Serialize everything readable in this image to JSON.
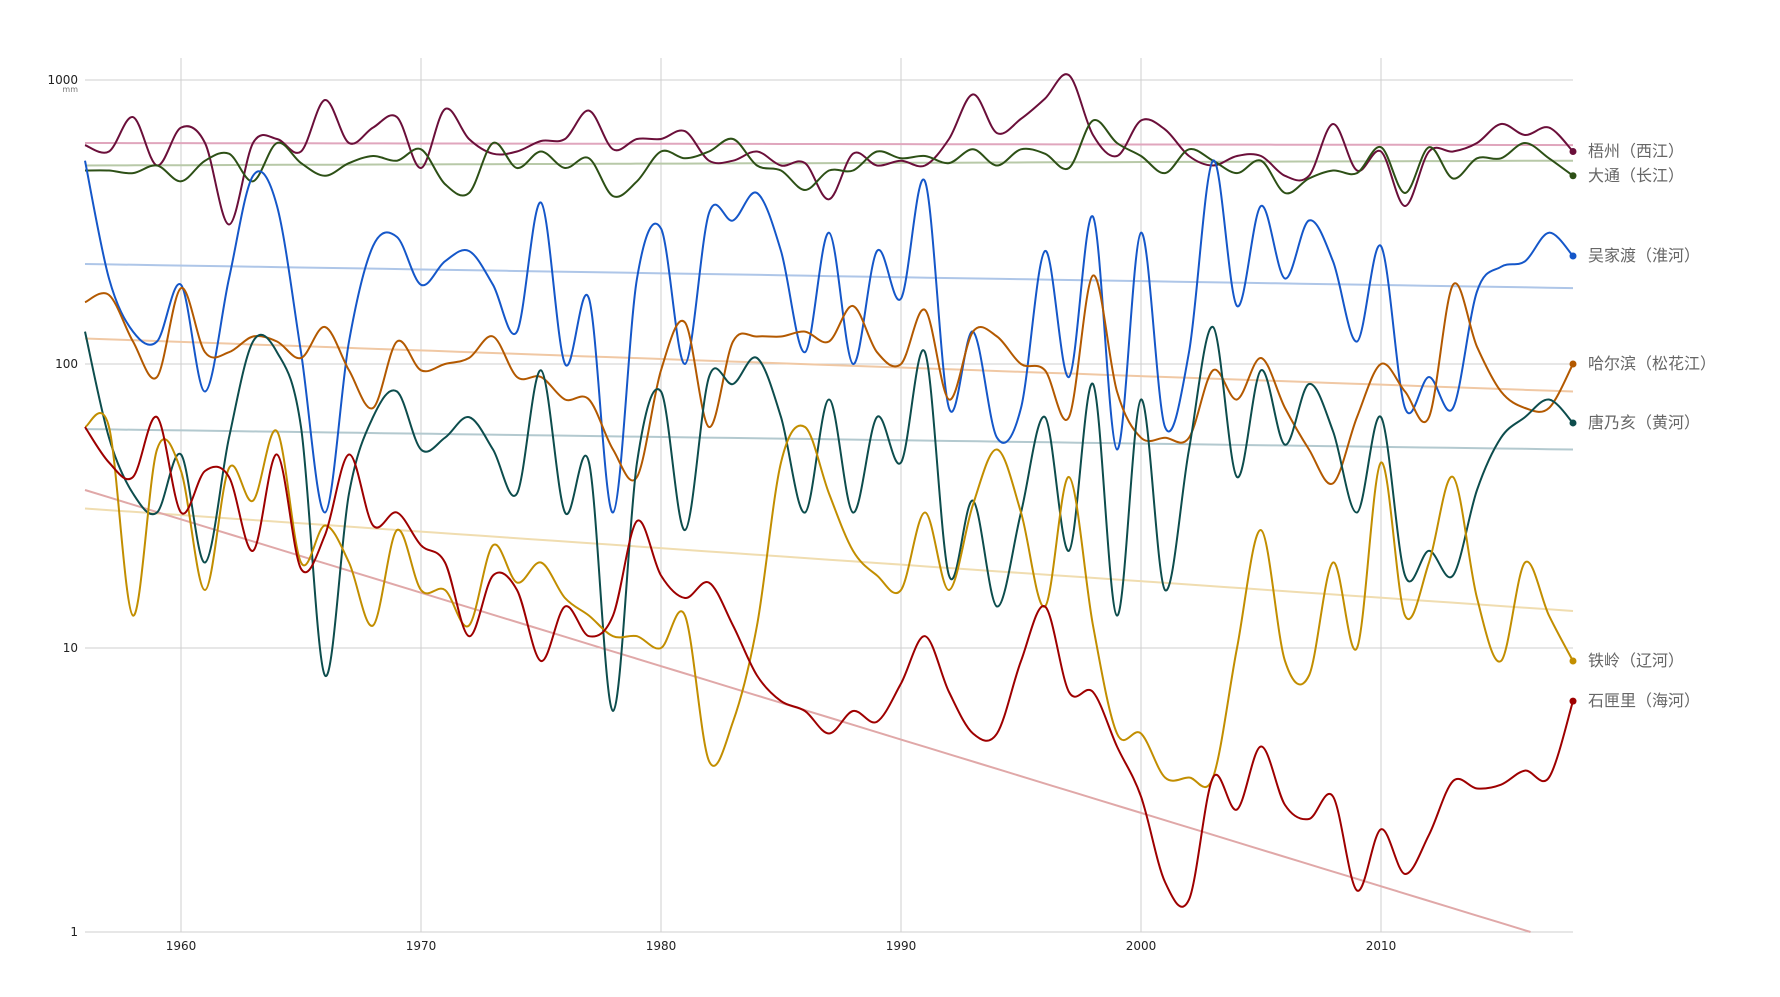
{
  "chart_data": {
    "type": "line",
    "yscale": "log",
    "ylim": [
      1,
      1000
    ],
    "xlim": [
      1956,
      2018
    ],
    "unit": "mm",
    "x_ticks": [
      "1960",
      "1970",
      "1980",
      "1990",
      "2000",
      "2010"
    ],
    "x_tick_values": [
      1960,
      1970,
      1980,
      1990,
      2000,
      2010
    ],
    "y_ticks": [
      "1",
      "10",
      "100",
      "1000"
    ],
    "y_tick_values": [
      1,
      10,
      100,
      1000
    ],
    "grid": true,
    "years": [
      1956,
      1957,
      1958,
      1959,
      1960,
      1961,
      1962,
      1963,
      1964,
      1965,
      1966,
      1967,
      1968,
      1969,
      1970,
      1971,
      1972,
      1973,
      1974,
      1975,
      1976,
      1977,
      1978,
      1979,
      1980,
      1981,
      1982,
      1983,
      1984,
      1985,
      1986,
      1987,
      1988,
      1989,
      1990,
      1991,
      1992,
      1993,
      1994,
      1995,
      1996,
      1997,
      1998,
      1999,
      2000,
      2001,
      2002,
      2003,
      2004,
      2005,
      2006,
      2007,
      2008,
      2009,
      2010,
      2011,
      2012,
      2013,
      2014,
      2015,
      2016,
      2017,
      2018
    ],
    "series": [
      {
        "name": "梧州（西江）",
        "color": "#6b0f3a",
        "trend_color": "#e0a6bd",
        "trend": [
          600,
          590
        ],
        "values": [
          590,
          560,
          740,
          500,
          680,
          600,
          310,
          600,
          620,
          560,
          850,
          600,
          680,
          740,
          490,
          790,
          620,
          550,
          560,
          610,
          620,
          780,
          570,
          620,
          620,
          660,
          520,
          520,
          560,
          500,
          510,
          380,
          550,
          500,
          520,
          500,
          620,
          890,
          650,
          730,
          860,
          1040,
          640,
          540,
          720,
          670,
          540,
          500,
          540,
          540,
          460,
          460,
          700,
          480,
          560,
          360,
          560,
          560,
          600,
          700,
          640,
          680,
          560
        ]
      },
      {
        "name": "大通（长江）",
        "color": "#2d5016",
        "trend_color": "#b8c9a8",
        "trend": [
          500,
          520
        ],
        "values": [
          480,
          480,
          470,
          500,
          440,
          520,
          550,
          440,
          600,
          510,
          460,
          510,
          540,
          520,
          570,
          430,
          400,
          600,
          490,
          560,
          490,
          530,
          390,
          440,
          560,
          530,
          560,
          620,
          500,
          480,
          410,
          480,
          480,
          560,
          530,
          540,
          510,
          570,
          500,
          570,
          550,
          490,
          720,
          600,
          540,
          470,
          570,
          520,
          470,
          520,
          400,
          450,
          480,
          470,
          580,
          400,
          580,
          450,
          530,
          530,
          600,
          530,
          460
        ]
      },
      {
        "name": "吴家渡（淮河）",
        "color": "#1557c9",
        "trend_color": "#aec6e8",
        "trend": [
          225,
          185
        ],
        "values": [
          520,
          200,
          130,
          120,
          190,
          80,
          200,
          460,
          360,
          110,
          30,
          120,
          260,
          280,
          190,
          230,
          250,
          190,
          130,
          370,
          100,
          170,
          30,
          200,
          300,
          100,
          340,
          320,
          400,
          250,
          110,
          290,
          100,
          250,
          170,
          440,
          70,
          130,
          55,
          70,
          250,
          90,
          330,
          50,
          290,
          60,
          110,
          520,
          160,
          360,
          200,
          320,
          230,
          120,
          260,
          70,
          90,
          70,
          180,
          220,
          230,
          290,
          240
        ]
      },
      {
        "name": "哈尔滨（松花江）",
        "color": "#b35900",
        "trend_color": "#f0c8a4",
        "trend": [
          123,
          80
        ],
        "values": [
          165,
          175,
          120,
          90,
          185,
          110,
          110,
          125,
          120,
          105,
          135,
          95,
          70,
          120,
          95,
          100,
          105,
          125,
          90,
          90,
          75,
          75,
          50,
          40,
          95,
          140,
          60,
          120,
          125,
          125,
          130,
          120,
          160,
          110,
          100,
          155,
          75,
          130,
          125,
          100,
          95,
          65,
          205,
          80,
          55,
          55,
          55,
          95,
          75,
          105,
          70,
          50,
          38,
          65,
          100,
          80,
          65,
          190,
          115,
          80,
          70,
          70,
          100
        ]
      },
      {
        "name": "唐乃亥（黄河）",
        "color": "#0d4d4d",
        "trend_color": "#b3c9cf",
        "trend": [
          59,
          50
        ],
        "values": [
          130,
          55,
          35,
          30,
          48,
          20,
          55,
          120,
          110,
          60,
          8,
          35,
          65,
          80,
          50,
          55,
          65,
          50,
          35,
          95,
          30,
          45,
          6,
          45,
          80,
          26,
          90,
          85,
          105,
          65,
          30,
          75,
          30,
          65,
          45,
          110,
          18,
          33,
          14,
          30,
          65,
          22,
          85,
          13,
          75,
          16,
          50,
          135,
          40,
          95,
          52,
          85,
          58,
          30,
          65,
          18,
          22,
          18,
          36,
          55,
          65,
          75,
          62
        ]
      },
      {
        "name": "铁岭（辽河）",
        "color": "#c28e00",
        "trend_color": "#f0ddb0",
        "trend": [
          31,
          13.5
        ],
        "values": [
          60,
          60,
          13,
          50,
          42,
          16,
          43,
          33,
          58,
          20,
          27,
          20,
          12,
          26,
          16,
          16,
          12,
          23,
          17,
          20,
          15,
          13,
          11,
          11,
          10,
          13,
          4,
          5.5,
          12,
          45,
          60,
          35,
          22,
          18,
          16,
          30,
          16,
          32,
          50,
          30,
          14,
          40,
          12,
          5,
          5,
          3.5,
          3.5,
          3.5,
          10,
          26,
          9,
          8,
          20,
          10,
          45,
          13,
          20,
          40,
          15,
          9,
          20,
          13,
          9
        ]
      },
      {
        "name": "石匣里（海河）",
        "color": "#9e0000",
        "trend_color": "#e0a8a8",
        "trend": [
          36,
          0.9
        ],
        "values": [
          60,
          45,
          40,
          65,
          30,
          42,
          40,
          22,
          48,
          19,
          25,
          48,
          27,
          30,
          23,
          20,
          11,
          18,
          16,
          9,
          14,
          11,
          13,
          28,
          18,
          15,
          17,
          12,
          8,
          6.5,
          6,
          5,
          6,
          5.5,
          7.5,
          11,
          7,
          5,
          5,
          9,
          14,
          7,
          7,
          4.5,
          3,
          1.5,
          1.3,
          3.5,
          2.7,
          4.5,
          2.8,
          2.5,
          3,
          1.4,
          2.3,
          1.6,
          2.2,
          3.4,
          3.2,
          3.3,
          3.7,
          3.5,
          6.5
        ]
      }
    ]
  }
}
